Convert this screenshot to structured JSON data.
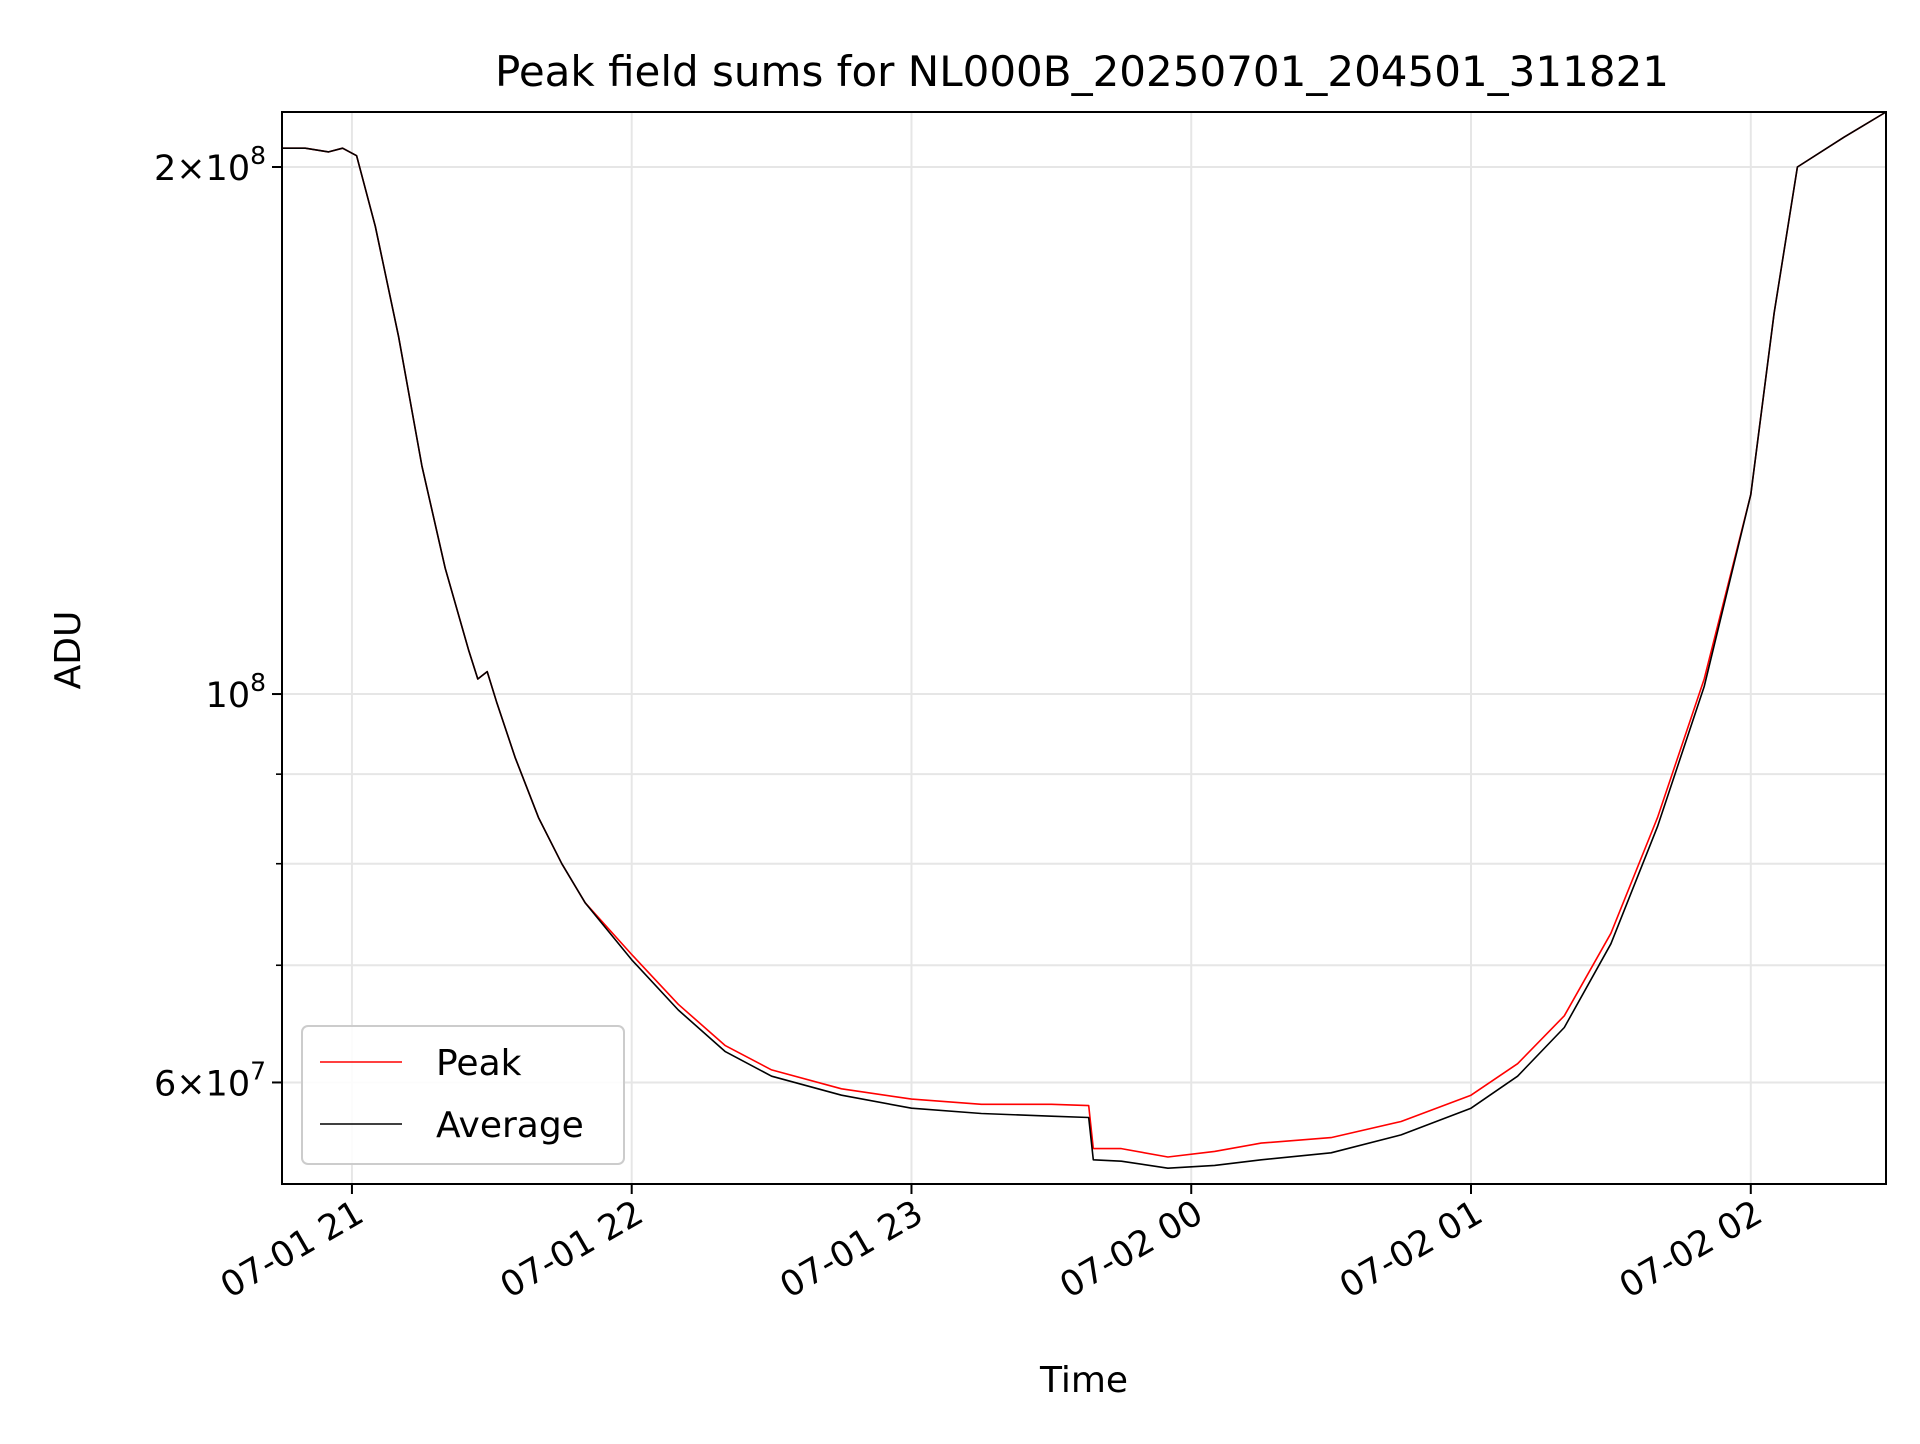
{
  "chart_data": {
    "type": "line",
    "title": "Peak field sums for NL000B_20250701_204501_311821",
    "xlabel": "Time",
    "ylabel": "ADU",
    "yscale": "log",
    "xlim": [
      "2025-07-01 20:45",
      "2025-07-02 02:29"
    ],
    "ylim": [
      52500000,
      215000000
    ],
    "grid": true,
    "legend_position": "lower-left",
    "x_ticks": [
      {
        "value": "2025-07-01 21:00",
        "label": "07-01 21"
      },
      {
        "value": "2025-07-01 22:00",
        "label": "07-01 22"
      },
      {
        "value": "2025-07-01 23:00",
        "label": "07-01 23"
      },
      {
        "value": "2025-07-02 00:00",
        "label": "07-02 00"
      },
      {
        "value": "2025-07-02 01:00",
        "label": "07-02 01"
      },
      {
        "value": "2025-07-02 02:00",
        "label": "07-02 02"
      }
    ],
    "y_major_ticks": [
      {
        "value": 60000000,
        "mant": "6",
        "exp": "7"
      },
      {
        "value": 100000000,
        "mant": "",
        "exp": "8"
      },
      {
        "value": 200000000,
        "mant": "2",
        "exp": "8"
      }
    ],
    "y_minor_ticks": [
      70000000,
      80000000,
      90000000
    ],
    "series": [
      {
        "name": "Peak",
        "color": "#ff0000",
        "x": [
          "2025-07-01 20:45",
          "2025-07-01 20:50",
          "2025-07-01 20:55",
          "2025-07-01 20:58",
          "2025-07-01 21:01",
          "2025-07-01 21:05",
          "2025-07-01 21:10",
          "2025-07-01 21:15",
          "2025-07-01 21:20",
          "2025-07-01 21:25",
          "2025-07-01 21:27",
          "2025-07-01 21:29",
          "2025-07-01 21:31",
          "2025-07-01 21:35",
          "2025-07-01 21:40",
          "2025-07-01 21:45",
          "2025-07-01 21:50",
          "2025-07-01 22:00",
          "2025-07-01 22:10",
          "2025-07-01 22:20",
          "2025-07-01 22:30",
          "2025-07-01 22:45",
          "2025-07-01 23:00",
          "2025-07-01 23:15",
          "2025-07-01 23:30",
          "2025-07-01 23:38",
          "2025-07-01 23:39",
          "2025-07-01 23:45",
          "2025-07-01 23:55",
          "2025-07-02 00:05",
          "2025-07-02 00:15",
          "2025-07-02 00:30",
          "2025-07-02 00:45",
          "2025-07-02 01:00",
          "2025-07-02 01:10",
          "2025-07-02 01:20",
          "2025-07-02 01:30",
          "2025-07-02 01:40",
          "2025-07-02 01:50",
          "2025-07-02 02:00",
          "2025-07-02 02:05",
          "2025-07-02 02:10",
          "2025-07-02 02:20",
          "2025-07-02 02:29"
        ],
        "values": [
          205000000,
          205000000,
          204000000,
          205000000,
          203000000,
          185000000,
          160000000,
          135000000,
          118000000,
          106000000,
          102000000,
          103000000,
          99000000,
          92000000,
          85000000,
          80000000,
          76000000,
          71000000,
          66500000,
          63000000,
          61000000,
          59500000,
          58700000,
          58300000,
          58300000,
          58200000,
          55000000,
          55000000,
          54400000,
          54800000,
          55400000,
          55800000,
          57000000,
          59000000,
          61500000,
          65500000,
          73000000,
          85000000,
          102000000,
          130000000,
          165000000,
          200000000,
          208000000,
          215000000
        ]
      },
      {
        "name": "Average",
        "color": "#000000",
        "x": [
          "2025-07-01 20:45",
          "2025-07-01 20:50",
          "2025-07-01 20:55",
          "2025-07-01 20:58",
          "2025-07-01 21:01",
          "2025-07-01 21:05",
          "2025-07-01 21:10",
          "2025-07-01 21:15",
          "2025-07-01 21:20",
          "2025-07-01 21:25",
          "2025-07-01 21:27",
          "2025-07-01 21:29",
          "2025-07-01 21:31",
          "2025-07-01 21:35",
          "2025-07-01 21:40",
          "2025-07-01 21:45",
          "2025-07-01 21:50",
          "2025-07-01 22:00",
          "2025-07-01 22:10",
          "2025-07-01 22:20",
          "2025-07-01 22:30",
          "2025-07-01 22:45",
          "2025-07-01 23:00",
          "2025-07-01 23:15",
          "2025-07-01 23:30",
          "2025-07-01 23:38",
          "2025-07-01 23:39",
          "2025-07-01 23:45",
          "2025-07-01 23:55",
          "2025-07-02 00:05",
          "2025-07-02 00:15",
          "2025-07-02 00:30",
          "2025-07-02 00:45",
          "2025-07-02 01:00",
          "2025-07-02 01:10",
          "2025-07-02 01:20",
          "2025-07-02 01:30",
          "2025-07-02 01:40",
          "2025-07-02 01:50",
          "2025-07-02 02:00",
          "2025-07-02 02:05",
          "2025-07-02 02:10",
          "2025-07-02 02:20",
          "2025-07-02 02:29"
        ],
        "values": [
          205000000,
          205000000,
          204000000,
          205000000,
          203000000,
          185000000,
          160000000,
          135000000,
          118000000,
          106000000,
          102000000,
          103000000,
          99000000,
          92000000,
          85000000,
          80000000,
          76000000,
          70500000,
          66000000,
          62500000,
          60500000,
          59000000,
          58000000,
          57600000,
          57400000,
          57300000,
          54200000,
          54100000,
          53600000,
          53800000,
          54200000,
          54700000,
          56000000,
          58000000,
          60500000,
          64500000,
          72000000,
          84000000,
          101000000,
          130000000,
          165000000,
          200000000,
          208000000,
          215000000
        ]
      }
    ]
  }
}
